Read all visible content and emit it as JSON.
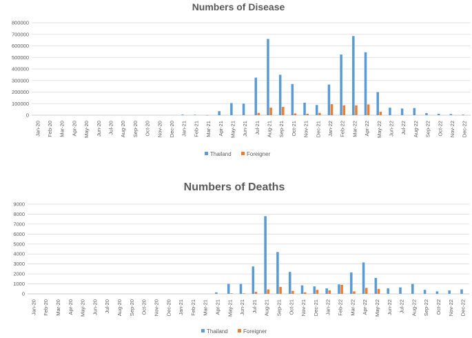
{
  "chart_data": [
    {
      "type": "bar",
      "title": "Numbers of  Disease",
      "xlabel": "",
      "ylabel": "",
      "ylim": [
        0,
        800000
      ],
      "yticks": [
        "0",
        "100000",
        "200000",
        "300000",
        "400000",
        "500000",
        "600000",
        "700000",
        "800000"
      ],
      "categories": [
        "Jan-20",
        "Feb-20",
        "Mar-20",
        "Apr-20",
        "May-20",
        "Jun-20",
        "Jul-20",
        "Aug-20",
        "Sep-20",
        "Oct-20",
        "Nov-20",
        "Dec-20",
        "Jan-21",
        "Feb-21",
        "Mar-21",
        "Apr-21",
        "May-21",
        "Jun-21",
        "Jul-21",
        "Aug-21",
        "Sep-21",
        "Oct-21",
        "Nov-21",
        "Dec-21",
        "Jan-22",
        "Feb-22",
        "Mar-22",
        "Apr-22",
        "May-22",
        "Jun-22",
        "Jul-22",
        "Aug-22",
        "Sep-22",
        "Oct-22",
        "Nov-22",
        "Dec-22"
      ],
      "series": [
        {
          "name": "Thailand",
          "color": "#5b9bd5",
          "values": [
            0,
            0,
            0,
            0,
            0,
            0,
            0,
            0,
            0,
            0,
            0,
            0,
            5000,
            4000,
            1000,
            35000,
            105000,
            100000,
            325000,
            660000,
            350000,
            270000,
            108000,
            88000,
            265000,
            525000,
            685000,
            545000,
            200000,
            65000,
            58000,
            62000,
            18000,
            12000,
            10000,
            5000
          ]
        },
        {
          "name": "Foreigner",
          "color": "#ed7d31",
          "values": [
            0,
            0,
            0,
            0,
            0,
            0,
            0,
            0,
            0,
            0,
            0,
            0,
            0,
            0,
            0,
            0,
            0,
            0,
            20000,
            65000,
            72000,
            15000,
            12000,
            20000,
            95000,
            85000,
            85000,
            93000,
            30000,
            0,
            0,
            0,
            0,
            0,
            0,
            0
          ]
        }
      ],
      "legend": "bottom"
    },
    {
      "type": "bar",
      "title": "Numbers of  Deaths",
      "xlabel": "",
      "ylabel": "",
      "ylim": [
        0,
        9000
      ],
      "yticks": [
        "0",
        "1000",
        "2000",
        "3000",
        "4000",
        "5000",
        "6000",
        "7000",
        "8000",
        "9000"
      ],
      "categories": [
        "Jan-20",
        "Feb-20",
        "Mar-20",
        "Apr-20",
        "May-20",
        "Jun-20",
        "Jul-20",
        "Aug-20",
        "Sep-20",
        "Oct-20",
        "Nov-20",
        "Dec-20",
        "Jan-21",
        "Feb-21",
        "Mar-21",
        "Apr-21",
        "May-21",
        "Jun-21",
        "Jul-21",
        "Aug-21",
        "Sep-21",
        "Oct-21",
        "Nov-21",
        "Dec-21",
        "Jan-22",
        "Feb-22",
        "Mar-22",
        "Apr-22",
        "May-22",
        "Jun-22",
        "Jul-22",
        "Aug-22",
        "Sep-22",
        "Oct-22",
        "Nov-22",
        "Dec-22"
      ],
      "series": [
        {
          "name": "Thailand",
          "color": "#5b9bd5",
          "values": [
            0,
            0,
            0,
            0,
            0,
            0,
            0,
            0,
            0,
            0,
            0,
            0,
            0,
            0,
            0,
            150,
            1000,
            1000,
            2750,
            7800,
            4200,
            2200,
            850,
            750,
            550,
            950,
            2150,
            3150,
            1600,
            550,
            650,
            1000,
            400,
            250,
            350,
            450
          ]
        },
        {
          "name": "Foreigner",
          "color": "#ed7d31",
          "values": [
            0,
            0,
            0,
            0,
            0,
            0,
            0,
            0,
            0,
            0,
            0,
            0,
            0,
            0,
            0,
            0,
            50,
            50,
            200,
            450,
            700,
            300,
            150,
            400,
            350,
            900,
            250,
            600,
            500,
            0,
            0,
            0,
            0,
            0,
            0,
            0
          ]
        }
      ],
      "legend": "bottom"
    }
  ]
}
